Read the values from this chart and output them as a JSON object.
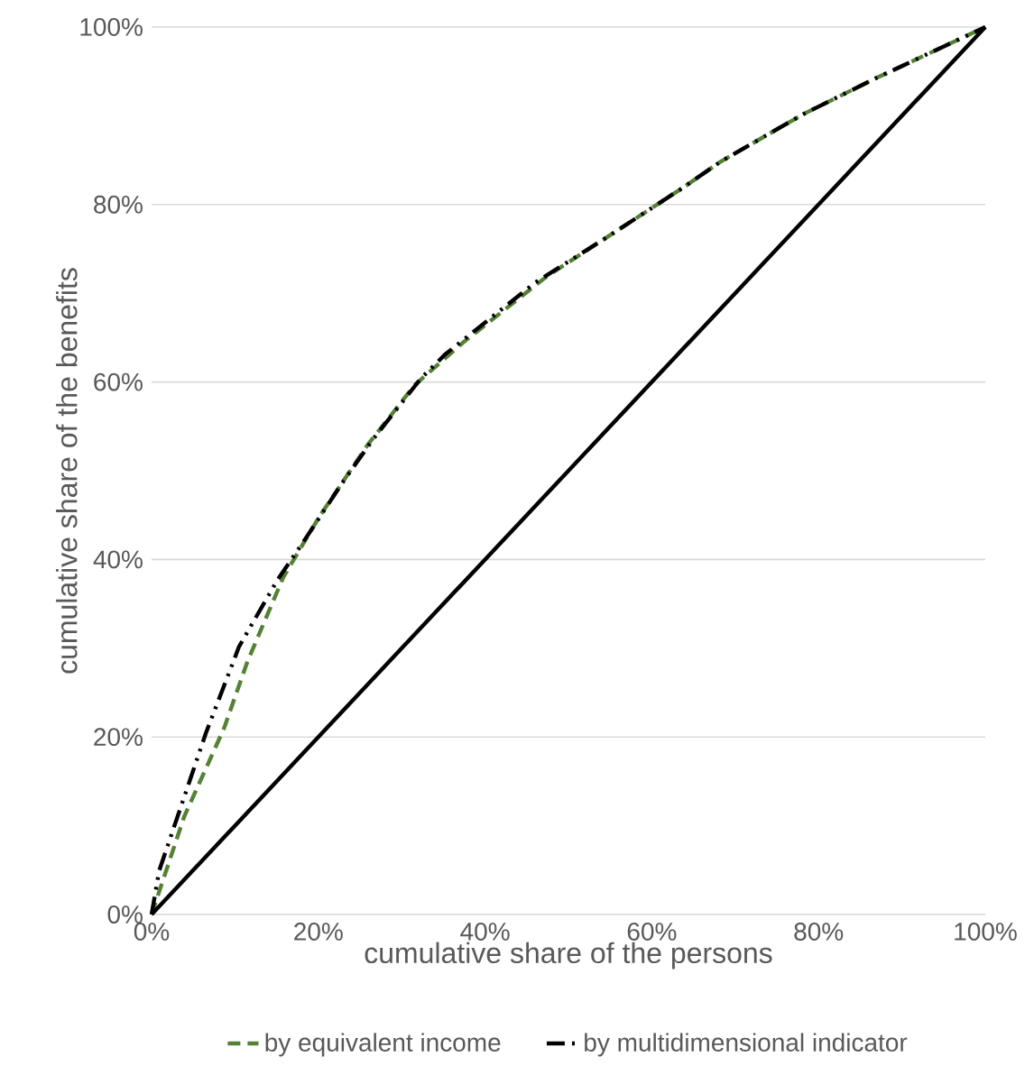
{
  "chart_data": {
    "type": "line",
    "xlabel": "cumulative share of the persons",
    "ylabel": "cumulative share of the benefits",
    "xlim": [
      0,
      100
    ],
    "ylim": [
      0,
      100
    ],
    "xticks": [
      {
        "value": 0,
        "label": "0%"
      },
      {
        "value": 20,
        "label": "20%"
      },
      {
        "value": 40,
        "label": "40%"
      },
      {
        "value": 60,
        "label": "60%"
      },
      {
        "value": 80,
        "label": "80%"
      },
      {
        "value": 100,
        "label": "100%"
      }
    ],
    "yticks": [
      {
        "value": 0,
        "label": "0%"
      },
      {
        "value": 20,
        "label": "20%"
      },
      {
        "value": 40,
        "label": "40%"
      },
      {
        "value": 60,
        "label": "60%"
      },
      {
        "value": 80,
        "label": "80%"
      },
      {
        "value": 100,
        "label": "100%"
      }
    ],
    "grid": "y",
    "legend": "bottom",
    "marker": "none",
    "series": [
      {
        "name": "by equivalent income",
        "color": "#548235",
        "line_style": "dashed",
        "x": [
          0,
          3.9,
          8.7,
          11.5,
          15.8,
          20.1,
          25.9,
          31.6,
          37.3,
          47.4,
          54.6,
          63.9,
          68.2,
          78.2,
          86.8,
          97.5,
          100
        ],
        "values": [
          0,
          11,
          21,
          28.5,
          38,
          44.8,
          52.9,
          59.7,
          64.4,
          71.9,
          76.3,
          82,
          84.8,
          90.2,
          94.2,
          98.9,
          100
        ]
      },
      {
        "name": "by multidimensional indicator",
        "color": "#000000",
        "line_style": "dashdot",
        "x": [
          0,
          0.9,
          4.3,
          6.5,
          10.5,
          15.1,
          18,
          23,
          26.6,
          32.3,
          35.2,
          46,
          54.6,
          63.9,
          68.2,
          78.2,
          86.8,
          97.5,
          100
        ],
        "values": [
          0,
          4.9,
          14.3,
          20.4,
          30.2,
          37.7,
          41.7,
          48.8,
          53.6,
          60.4,
          63.1,
          71.2,
          76.3,
          82,
          84.8,
          90.2,
          94.2,
          98.9,
          100
        ]
      },
      {
        "color": "#000000",
        "line_style": "solid",
        "x": [
          0,
          100
        ],
        "values": [
          0,
          100
        ]
      }
    ]
  }
}
